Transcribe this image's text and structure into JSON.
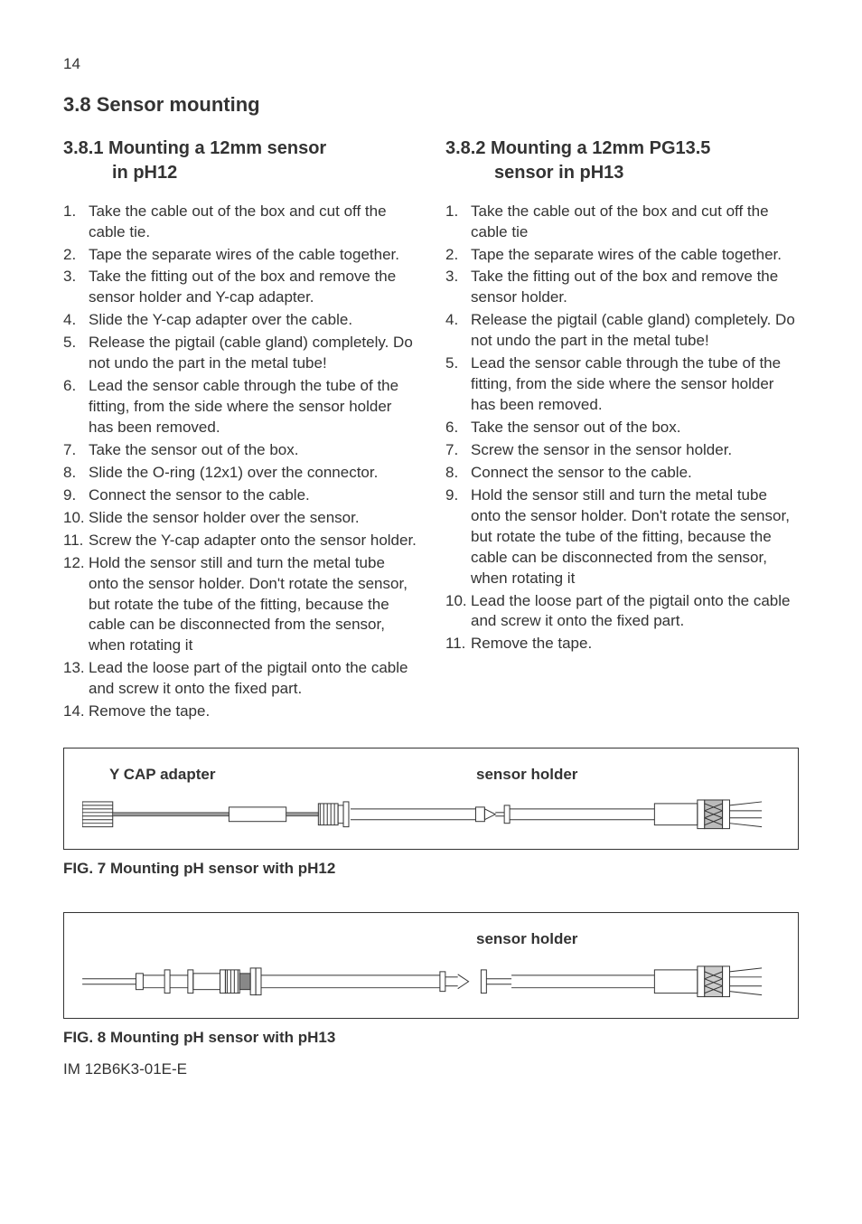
{
  "page_number": "14",
  "section_title": "3.8 Sensor mounting",
  "left_column": {
    "title_line1": "3.8.1 Mounting a 12mm sensor",
    "title_line2": "in pH12",
    "steps": [
      "Take the cable out of the box and cut off the cable tie.",
      "Tape the separate wires of the cable together.",
      "Take the fitting out of the box and remove the sensor holder and Y-cap adapter.",
      "Slide the Y-cap adapter over the cable.",
      "Release the pigtail (cable gland) completely. Do not undo the part in the metal tube!",
      "Lead the sensor cable through the tube of the fitting, from the side where the sensor holder has been removed.",
      "Take the sensor out of the box.",
      "Slide the O-ring (12x1) over the connector.",
      "Connect the sensor to the cable.",
      "Slide the sensor holder over the sensor.",
      "Screw the Y-cap adapter onto the sensor holder.",
      "Hold the sensor still and turn the metal tube onto the sensor holder. Don't rotate the sensor, but rotate the tube of the fitting, because the cable can be disconnected from the sensor, when rotating it",
      "Lead the loose part of the pigtail onto the cable and screw it onto the fixed part.",
      "Remove the tape."
    ]
  },
  "right_column": {
    "title_line1": "3.8.2 Mounting a 12mm PG13.5",
    "title_line2": "sensor in pH13",
    "steps": [
      "Take the cable out of the box and cut off the cable tie",
      "Tape the separate wires of the cable together.",
      "Take the fitting out of the box and remove the sensor holder.",
      "Release the pigtail (cable gland) completely. Do not undo the part in the metal tube!",
      "Lead the sensor cable through the tube of the fitting, from the side where the sensor holder has been removed.",
      "Take the sensor out of the box.",
      "Screw the sensor in the sensor holder.",
      "Connect the sensor to the cable.",
      "Hold the sensor still and turn the metal tube onto the sensor holder. Don't rotate the sensor, but rotate the tube of the fitting, because the cable can be disconnected from the sensor, when rotating it",
      "Lead the loose part of the pigtail onto the cable and screw it onto the fixed part.",
      "Remove the tape."
    ]
  },
  "figure7": {
    "label_left": "Y CAP adapter",
    "label_right": "sensor holder",
    "caption": "FIG. 7 Mounting pH sensor with pH12",
    "stroke": "#333333",
    "fill_hatch": "#888888"
  },
  "figure8": {
    "label_right": "sensor holder",
    "caption": "FIG. 8 Mounting pH sensor with pH13",
    "stroke": "#333333"
  },
  "footer": "IM 12B6K3-01E-E",
  "colors": {
    "text": "#333333",
    "background": "#ffffff",
    "border": "#333333"
  },
  "typography": {
    "body_pt": 12.5,
    "heading_pt": 16,
    "subheading_pt": 15,
    "font_family": "Arial"
  }
}
